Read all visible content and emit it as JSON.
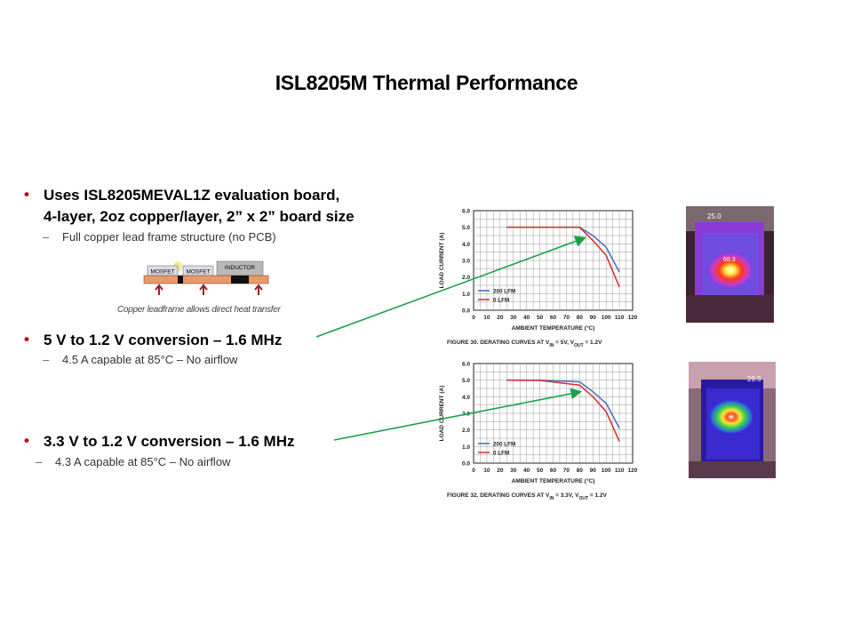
{
  "page": {
    "title": "ISL8205M Thermal Performance"
  },
  "bullets": [
    {
      "line1": "Uses ISL8205MEVAL1Z evaluation board,",
      "line2": "4-layer, 2oz copper/layer, 2” x 2” board size",
      "sub": "Full copper lead frame structure (no PCB)"
    },
    {
      "line1": "5 V to 1.2 V  conversion – 1.6 MHz",
      "sub": "4.5 A capable at 85°C – No airflow"
    },
    {
      "line1": "3.3 V to 1.2 V conversion – 1.6 MHz",
      "sub": "4.3 A capable at 85°C – No airflow"
    }
  ],
  "diagram": {
    "mosfet1": "MOSFET",
    "mosfet2": "MOSFET",
    "inductor": "INDUCTOR",
    "caption": "Copper leadframe allows direct heat transfer"
  },
  "thermal_images": [
    {
      "label_top": "25.0",
      "label_hot": "68.3"
    },
    {
      "label_top": "29.5"
    }
  ],
  "colors": {
    "bullet": "#c00000",
    "arrow": "#1aa24a",
    "series_200lfm": "#4b73c4",
    "series_0lfm": "#d13838"
  },
  "chart_data": [
    {
      "type": "line",
      "caption_prefix": "FIGURE 30.  DERATING CURVES AT V",
      "caption_vin_sub": "IN",
      "caption_mid": " = 5V, V",
      "caption_vout_sub": "OUT",
      "caption_end": " = 1.2V",
      "xlabel": "AMBIENT TEMPERATURE (°C)",
      "ylabel": "LOAD CURRENT (A)",
      "xlim": [
        0,
        120
      ],
      "ylim": [
        0,
        6.0
      ],
      "xticks": [
        "0",
        "10",
        "20",
        "30",
        "40",
        "50",
        "60",
        "70",
        "80",
        "90",
        "100",
        "110",
        "120"
      ],
      "yticks": [
        "0.0",
        "1.0",
        "2.0",
        "3.0",
        "4.0",
        "5.0",
        "6.0"
      ],
      "grid": true,
      "legend": "bottom-left",
      "series": [
        {
          "name": "200 LFM",
          "x": [
            25,
            80,
            90,
            100,
            110
          ],
          "y": [
            5.0,
            5.0,
            4.5,
            3.8,
            2.3
          ]
        },
        {
          "name": "0 LFM",
          "x": [
            25,
            80,
            90,
            100,
            110
          ],
          "y": [
            5.0,
            5.0,
            4.2,
            3.3,
            1.4
          ]
        }
      ]
    },
    {
      "type": "line",
      "caption_prefix": "FIGURE 32.  DERATING CURVES AT V",
      "caption_vin_sub": "IN",
      "caption_mid": " = 3.3V, V",
      "caption_vout_sub": "OUT",
      "caption_end": " = 1.2V",
      "xlabel": "AMBIENT TEMPERATURE (°C)",
      "ylabel": "LOAD CURRENT (A)",
      "xlim": [
        0,
        120
      ],
      "ylim": [
        0,
        6.0
      ],
      "xticks": [
        "0",
        "10",
        "20",
        "30",
        "40",
        "50",
        "60",
        "70",
        "80",
        "90",
        "100",
        "110",
        "120"
      ],
      "yticks": [
        "0.0",
        "1.0",
        "2.0",
        "3.0",
        "4.0",
        "5.0",
        "6.0"
      ],
      "grid": true,
      "legend": "bottom-left",
      "series": [
        {
          "name": "200 LFM",
          "x": [
            25,
            50,
            80,
            90,
            100,
            110
          ],
          "y": [
            5.0,
            5.0,
            4.9,
            4.3,
            3.6,
            2.1
          ]
        },
        {
          "name": "0 LFM",
          "x": [
            25,
            50,
            80,
            90,
            100,
            110
          ],
          "y": [
            5.0,
            4.98,
            4.7,
            4.0,
            3.1,
            1.3
          ]
        }
      ]
    }
  ]
}
